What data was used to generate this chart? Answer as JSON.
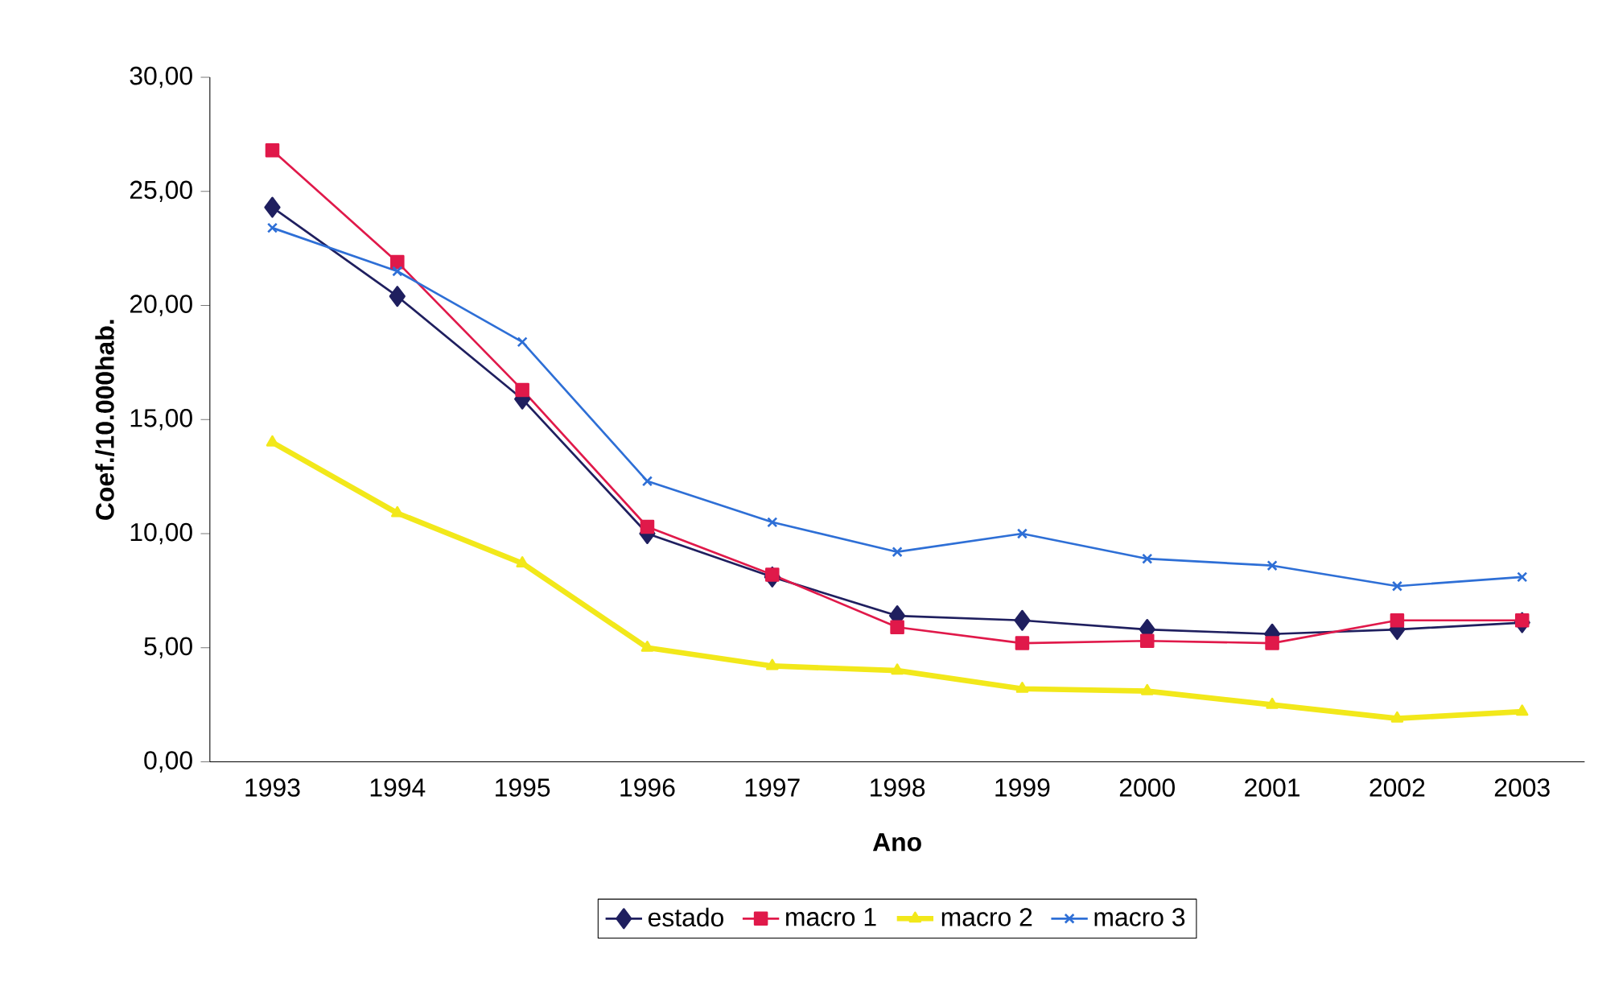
{
  "chart_data": {
    "type": "line",
    "xlabel": "Ano",
    "ylabel": "Coef./10.000hab.",
    "categories": [
      "1993",
      "1994",
      "1995",
      "1996",
      "1997",
      "1998",
      "1999",
      "2000",
      "2001",
      "2002",
      "2003"
    ],
    "ylim": [
      0,
      30
    ],
    "yticks": [
      {
        "value": 0,
        "label": "0,00"
      },
      {
        "value": 5,
        "label": "5,00"
      },
      {
        "value": 10,
        "label": "10,00"
      },
      {
        "value": 15,
        "label": "15,00"
      },
      {
        "value": 20,
        "label": "20,00"
      },
      {
        "value": 25,
        "label": "25,00"
      },
      {
        "value": 30,
        "label": "30,00"
      }
    ],
    "legend": "bottom",
    "grid": false,
    "series": [
      {
        "name": "estado",
        "color": "#1f1f5f",
        "marker": "diamond",
        "values": [
          24.3,
          20.4,
          15.9,
          10.0,
          8.1,
          6.4,
          6.2,
          5.8,
          5.6,
          5.8,
          6.1
        ]
      },
      {
        "name": "macro 1",
        "color": "#e0194a",
        "marker": "square",
        "values": [
          26.8,
          21.9,
          16.3,
          10.3,
          8.2,
          5.9,
          5.2,
          5.3,
          5.2,
          6.2,
          6.2
        ]
      },
      {
        "name": "macro 2",
        "color": "#f2e81a",
        "marker": "triangle",
        "values": [
          14.0,
          10.9,
          8.7,
          5.0,
          4.2,
          4.0,
          3.2,
          3.1,
          2.5,
          1.9,
          2.2
        ]
      },
      {
        "name": "macro 3",
        "color": "#2e6fd6",
        "marker": "cross",
        "values": [
          23.4,
          21.5,
          18.4,
          12.3,
          10.5,
          9.2,
          10.0,
          8.9,
          8.6,
          7.7,
          8.1
        ]
      }
    ]
  }
}
